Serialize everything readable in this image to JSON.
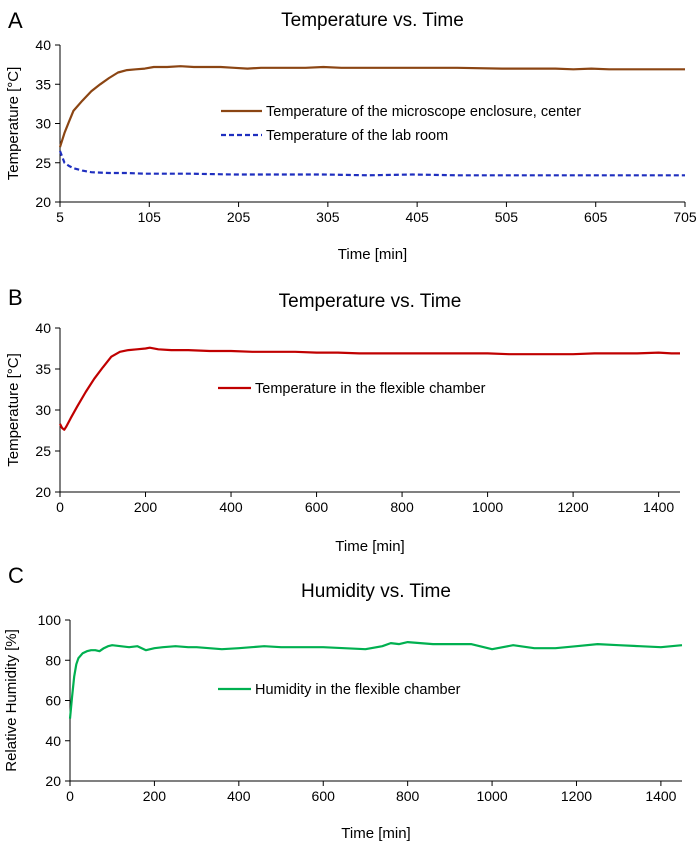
{
  "chart_data": [
    {
      "panel": "A",
      "type": "line",
      "title": "Temperature vs. Time",
      "xlabel": "Time [min]",
      "ylabel": "Temperature [°C]",
      "xlim": [
        5,
        705
      ],
      "ylim": [
        20,
        40
      ],
      "xticks": [
        5,
        105,
        205,
        305,
        405,
        505,
        605,
        705
      ],
      "yticks": [
        20,
        25,
        30,
        35,
        40
      ],
      "grid": false,
      "legend_position": "center-right",
      "series": [
        {
          "name": "Temperature of the microscope enclosure, center",
          "color": "#8B4513",
          "dash": "solid",
          "x": [
            5,
            10,
            15,
            20,
            30,
            40,
            50,
            60,
            70,
            80,
            90,
            100,
            110,
            125,
            140,
            155,
            170,
            185,
            200,
            215,
            230,
            250,
            280,
            300,
            320,
            350,
            400,
            450,
            500,
            560,
            580,
            600,
            620,
            650,
            680,
            705
          ],
          "y": [
            27.0,
            28.8,
            30.2,
            31.6,
            32.9,
            34.1,
            35.0,
            35.8,
            36.5,
            36.8,
            36.9,
            37.0,
            37.2,
            37.2,
            37.3,
            37.2,
            37.2,
            37.2,
            37.1,
            37.0,
            37.1,
            37.1,
            37.1,
            37.2,
            37.1,
            37.1,
            37.1,
            37.1,
            37.0,
            37.0,
            36.9,
            37.0,
            36.9,
            36.9,
            36.9,
            36.9
          ]
        },
        {
          "name": "Temperature of the lab room",
          "color": "#1F2FBF",
          "dash": "dashed",
          "x": [
            5,
            10,
            15,
            20,
            30,
            40,
            60,
            80,
            100,
            120,
            150,
            200,
            250,
            300,
            350,
            400,
            450,
            500,
            550,
            600,
            650,
            705
          ],
          "y": [
            26.5,
            25.0,
            24.6,
            24.3,
            24.0,
            23.8,
            23.7,
            23.7,
            23.6,
            23.6,
            23.6,
            23.5,
            23.5,
            23.5,
            23.4,
            23.5,
            23.4,
            23.4,
            23.4,
            23.4,
            23.4,
            23.4
          ]
        }
      ]
    },
    {
      "panel": "B",
      "type": "line",
      "title": "Temperature vs. Time",
      "xlabel": "Time [min]",
      "ylabel": "Temperature [°C]",
      "xlim": [
        0,
        1450
      ],
      "ylim": [
        20,
        40
      ],
      "xticks": [
        0,
        200,
        400,
        600,
        800,
        1000,
        1200,
        1400
      ],
      "yticks": [
        20,
        25,
        30,
        35,
        40
      ],
      "grid": false,
      "legend_position": "center",
      "series": [
        {
          "name": "Temperature in the flexible chamber",
          "color": "#C00000",
          "dash": "solid",
          "x": [
            0,
            5,
            10,
            15,
            25,
            40,
            60,
            80,
            100,
            120,
            140,
            160,
            180,
            200,
            210,
            230,
            260,
            300,
            350,
            400,
            450,
            500,
            550,
            600,
            650,
            700,
            750,
            800,
            850,
            900,
            950,
            1000,
            1050,
            1100,
            1150,
            1200,
            1250,
            1300,
            1350,
            1400,
            1430,
            1450
          ],
          "y": [
            28.3,
            27.8,
            27.6,
            28.0,
            29.0,
            30.4,
            32.2,
            33.8,
            35.2,
            36.5,
            37.1,
            37.3,
            37.4,
            37.5,
            37.6,
            37.4,
            37.3,
            37.3,
            37.2,
            37.2,
            37.1,
            37.1,
            37.1,
            37.0,
            37.0,
            36.9,
            36.9,
            36.9,
            36.9,
            36.9,
            36.9,
            36.9,
            36.8,
            36.8,
            36.8,
            36.8,
            36.9,
            36.9,
            36.9,
            37.0,
            36.9,
            36.9
          ]
        }
      ]
    },
    {
      "panel": "C",
      "type": "line",
      "title": "Humidity vs. Time",
      "xlabel": "Time [min]",
      "ylabel": "Relative Humidity [%]",
      "xlim": [
        0,
        1450
      ],
      "ylim": [
        20,
        100
      ],
      "xticks": [
        0,
        200,
        400,
        600,
        800,
        1000,
        1200,
        1400
      ],
      "yticks": [
        20,
        40,
        60,
        80,
        100
      ],
      "grid": false,
      "legend_position": "center",
      "series": [
        {
          "name": "Humidity in the flexible chamber",
          "color": "#00B050",
          "dash": "solid",
          "x": [
            0,
            5,
            10,
            15,
            20,
            30,
            40,
            50,
            60,
            70,
            80,
            90,
            100,
            120,
            140,
            160,
            180,
            200,
            220,
            250,
            280,
            300,
            330,
            360,
            400,
            430,
            460,
            500,
            550,
            600,
            650,
            700,
            740,
            760,
            780,
            800,
            830,
            860,
            900,
            950,
            1000,
            1050,
            1100,
            1150,
            1200,
            1250,
            1300,
            1350,
            1400,
            1450
          ],
          "y": [
            51,
            62,
            72,
            78,
            81,
            83.5,
            84.5,
            85,
            85,
            84.5,
            86,
            87,
            87.5,
            87,
            86.5,
            87,
            85,
            86,
            86.5,
            87,
            86.5,
            86.5,
            86,
            85.5,
            86,
            86.5,
            87,
            86.5,
            86.5,
            86.5,
            86,
            85.5,
            87,
            88.5,
            88,
            89,
            88.5,
            88,
            88,
            88,
            85.5,
            87.5,
            86,
            86,
            87,
            88,
            87.5,
            87,
            86.5,
            87.5
          ]
        }
      ]
    }
  ]
}
